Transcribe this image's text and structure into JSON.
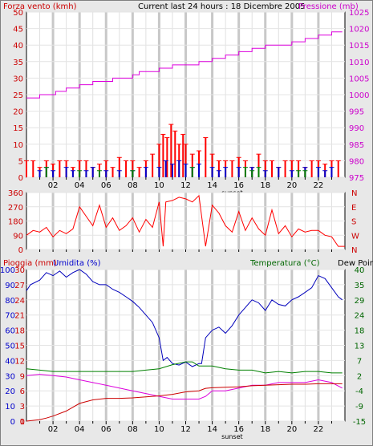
{
  "chart_data": [
    {
      "type": "bar",
      "title": "Current last 24 hours : 18 Dicembre 2005",
      "ylabel_left": "Forza vento (kmh)",
      "ylabel_right": "Pressione (mb)",
      "xlabel_marker": "sunset",
      "x_ticks": [
        "02",
        "04",
        "06",
        "08",
        "10",
        "12",
        "14",
        "16",
        "18",
        "20",
        "22"
      ],
      "xlim": [
        0,
        24
      ],
      "left_ticks": [
        "0",
        "5",
        "10",
        "15",
        "20",
        "25",
        "30",
        "35",
        "40",
        "45",
        "50"
      ],
      "left_ylim": [
        0,
        50
      ],
      "right_ticks": [
        "975",
        "980",
        "985",
        "990",
        "995",
        "1000",
        "1005",
        "1010",
        "1015",
        "1020",
        "1025"
      ],
      "right_ylim": [
        975,
        1025
      ],
      "series": [
        {
          "role": "pressure",
          "color": "#dd00dd",
          "x": [
            0,
            0.8,
            1.0,
            2.0,
            2.2,
            3.0,
            4.0,
            5.0,
            6.0,
            6.5,
            7.0,
            8.0,
            8.5,
            9.0,
            10.0,
            11.0,
            12.0,
            13.0,
            14.0,
            15.0,
            16.0,
            17.0,
            18.0,
            19.0,
            20.0,
            21.0,
            22.0,
            23.0,
            23.8
          ],
          "y": [
            999,
            999,
            1000,
            1000,
            1001,
            1002,
            1003,
            1004,
            1004,
            1005,
            1005,
            1006,
            1007,
            1007,
            1008,
            1009,
            1009,
            1010,
            1011,
            1012,
            1013,
            1014,
            1015,
            1015,
            1016,
            1017,
            1018,
            1019,
            1019
          ]
        },
        {
          "role": "wind-gust",
          "color": "#ff0000",
          "x": [
            0.0,
            0.5,
            1.0,
            1.5,
            2.0,
            2.5,
            3.0,
            3.5,
            4.0,
            4.5,
            5.0,
            5.5,
            6.0,
            6.5,
            7.0,
            7.5,
            8.0,
            8.5,
            9.0,
            9.5,
            10.0,
            10.3,
            10.6,
            10.9,
            11.2,
            11.5,
            11.8,
            12.0,
            12.5,
            13.0,
            13.5,
            14.0,
            14.5,
            15.0,
            15.5,
            16.0,
            16.5,
            17.0,
            17.5,
            18.0,
            18.5,
            19.0,
            19.5,
            20.0,
            20.5,
            21.0,
            21.5,
            22.0,
            22.5,
            23.0,
            23.5
          ],
          "y": [
            5,
            5,
            3,
            5,
            4,
            5,
            5,
            3,
            5,
            5,
            3,
            4,
            5,
            3,
            6,
            5,
            5,
            3,
            5,
            7,
            10,
            13,
            12,
            16,
            14,
            10,
            13,
            10,
            7,
            8,
            12,
            7,
            5,
            5,
            5,
            6,
            5,
            3,
            7,
            5,
            5,
            3,
            5,
            5,
            5,
            3,
            5,
            5,
            4,
            5,
            5
          ]
        },
        {
          "role": "wind-average",
          "color": "#0000cc",
          "x": [
            1.0,
            1.5,
            2.0,
            3.0,
            3.5,
            4.5,
            5.0,
            6.0,
            7.0,
            8.0,
            9.0,
            10.0,
            10.5,
            11.0,
            11.5,
            12.0,
            12.5,
            13.0,
            14.0,
            14.5,
            15.0,
            16.0,
            17.0,
            18.0,
            19.0,
            20.0,
            21.0,
            22.0,
            22.5,
            23.0
          ],
          "y": [
            2,
            3,
            2,
            3,
            2,
            2,
            3,
            2,
            2,
            2,
            3,
            3,
            5,
            4,
            5,
            4,
            3,
            4,
            3,
            2,
            3,
            3,
            3,
            2,
            3,
            2,
            3,
            3,
            2,
            3
          ]
        },
        {
          "role": "wind-low",
          "color": "#008000",
          "x": [
            1.5,
            4.0,
            5.5,
            8.0,
            12.5,
            16.5,
            17.0,
            17.5,
            20.5,
            21.0
          ],
          "y": [
            3,
            2,
            2,
            2,
            3,
            3,
            2,
            3,
            2,
            2
          ]
        }
      ]
    },
    {
      "type": "line",
      "ylabel_right": "N W S E N",
      "right_ticks": [
        "N",
        "W",
        "S",
        "E",
        "N"
      ],
      "left_ticks": [
        "0",
        "90",
        "180",
        "270",
        "360"
      ],
      "ylim": [
        0,
        360
      ],
      "xlim": [
        0,
        24
      ],
      "series": [
        {
          "role": "wind-direction",
          "color": "#ff0000",
          "x": [
            0,
            0.5,
            1.0,
            1.5,
            2.0,
            2.5,
            3.0,
            3.5,
            4.0,
            4.5,
            5.0,
            5.5,
            6.0,
            6.5,
            7.0,
            7.5,
            8.0,
            8.5,
            9.0,
            9.5,
            10.0,
            10.3,
            10.5,
            11.0,
            11.5,
            12.0,
            12.5,
            13.0,
            13.5,
            14.0,
            14.5,
            15.0,
            15.5,
            16.0,
            16.5,
            17.0,
            17.5,
            18.0,
            18.5,
            19.0,
            19.5,
            20.0,
            20.5,
            21.0,
            21.5,
            22.0,
            22.5,
            23.0,
            23.5,
            24.0
          ],
          "y": [
            90,
            120,
            110,
            140,
            80,
            120,
            100,
            130,
            270,
            210,
            150,
            280,
            140,
            200,
            120,
            150,
            200,
            110,
            190,
            140,
            300,
            20,
            300,
            310,
            330,
            320,
            300,
            340,
            20,
            280,
            230,
            150,
            110,
            240,
            120,
            200,
            130,
            90,
            250,
            100,
            150,
            80,
            130,
            110,
            120,
            120,
            90,
            80,
            20,
            20
          ]
        }
      ]
    },
    {
      "type": "line",
      "ylabel_left": "Pioggia (mm)",
      "ylabel_left2": "Umidita (%)",
      "ylabel_right": "Temperatura (°C)",
      "ylabel_right2": "Dew Point",
      "xlabel_marker": "sunset",
      "x_ticks": [
        "02",
        "04",
        "06",
        "08",
        "10",
        "12",
        "14",
        "16",
        "18",
        "20",
        "22"
      ],
      "xlim": [
        0,
        24
      ],
      "left_ticks_rain": [
        "0",
        "1",
        "3",
        "6",
        "9",
        "12",
        "15",
        "18",
        "21",
        "24",
        "27",
        "30"
      ],
      "left_ticks_humidity": [
        "0",
        "10",
        "20",
        "30",
        "40",
        "50",
        "60",
        "70",
        "80",
        "90",
        "100"
      ],
      "right_ticks": [
        "40",
        "35",
        "29",
        "24",
        "18",
        "13",
        "7",
        "2",
        "-4",
        "-9",
        "-15"
      ],
      "ylim_humidity": [
        0,
        100
      ],
      "ylim_temp": [
        -15,
        40
      ],
      "series": [
        {
          "role": "humidity",
          "color": "#0000bb",
          "x": [
            0,
            0.3,
            1.0,
            1.5,
            2.0,
            2.5,
            3.0,
            3.5,
            4.0,
            4.5,
            5.0,
            5.5,
            6.0,
            6.5,
            7.0,
            7.5,
            8.0,
            8.5,
            9.0,
            9.5,
            10.0,
            10.3,
            10.6,
            11.0,
            11.5,
            12.0,
            12.5,
            13.0,
            13.2,
            13.5,
            14.0,
            14.5,
            15.0,
            15.5,
            16.0,
            16.5,
            17.0,
            17.5,
            18.0,
            18.5,
            19.0,
            19.5,
            20.0,
            20.5,
            21.0,
            21.5,
            22.0,
            22.5,
            23.0,
            23.5,
            23.8
          ],
          "y": [
            86,
            90,
            93,
            98,
            96,
            99,
            95,
            98,
            100,
            97,
            92,
            90,
            90,
            87,
            85,
            82,
            79,
            75,
            70,
            65,
            55,
            40,
            42,
            38,
            37,
            39,
            36,
            38,
            38,
            55,
            60,
            62,
            58,
            63,
            70,
            75,
            80,
            78,
            73,
            80,
            77,
            76,
            80,
            82,
            85,
            88,
            96,
            94,
            88,
            82,
            80
          ]
        },
        {
          "role": "temperature",
          "color": "#008000",
          "x": [
            0,
            1,
            2,
            3,
            4,
            5,
            6,
            7,
            8,
            9,
            10,
            11,
            12,
            12.5,
            13,
            13.5,
            14,
            15,
            16,
            17,
            18,
            19,
            20,
            21,
            22,
            23,
            23.8
          ],
          "y": [
            4,
            3.5,
            3,
            3,
            3,
            3,
            3,
            3,
            3,
            3.5,
            4,
            5.5,
            6.5,
            6.5,
            5,
            5,
            5,
            4,
            3.5,
            3.5,
            2.5,
            3,
            2.5,
            3,
            3,
            2.5,
            2.5
          ]
        },
        {
          "role": "dew-point",
          "color": "#dd00dd",
          "x": [
            0,
            1,
            2,
            3,
            4,
            5,
            6,
            7,
            8,
            9,
            10,
            11,
            12,
            13,
            13.5,
            14,
            15,
            16,
            17,
            18,
            19,
            20,
            21,
            22,
            23,
            23.8
          ],
          "y": [
            1.5,
            2,
            1.5,
            1,
            0,
            -1,
            -2,
            -3,
            -4,
            -5,
            -6,
            -7,
            -7,
            -7,
            -6,
            -4,
            -4,
            -3,
            -2,
            -2,
            -1,
            -1,
            -1,
            0,
            -1,
            -3
          ]
        },
        {
          "role": "rain",
          "color": "#cc0000",
          "x": [
            0,
            1.0,
            1.5,
            2.0,
            3.0,
            4.0,
            5.0,
            6.0,
            7.0,
            8.0,
            9.0,
            10.0,
            11.0,
            12.0,
            13.0,
            13.5,
            14.0,
            15.0,
            16.0,
            17.0,
            18.0,
            19.0,
            20.0,
            21.0,
            22.0,
            23.0,
            23.8
          ],
          "y": [
            0,
            0.3,
            0.6,
            1.0,
            2.0,
            3.5,
            4.2,
            4.5,
            4.5,
            4.6,
            4.8,
            5.0,
            5.3,
            5.8,
            6.0,
            6.5,
            6.6,
            6.7,
            6.8,
            7.0,
            7.1,
            7.2,
            7.3,
            7.3,
            7.4,
            7.4,
            7.4
          ]
        }
      ]
    }
  ]
}
